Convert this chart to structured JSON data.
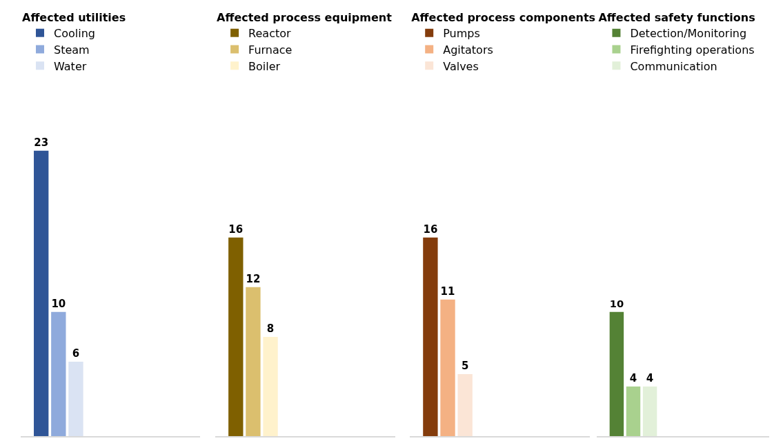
{
  "chart_data": [
    {
      "type": "bar",
      "legend_title": "Affected utilities",
      "categories": [
        null
      ],
      "data_labels": true,
      "legend": "top",
      "series": [
        {
          "name": "Cooling",
          "color": "#2f5597",
          "values": [
            23
          ]
        },
        {
          "name": "Steam",
          "color": "#8faadc",
          "values": [
            10
          ]
        },
        {
          "name": "Water",
          "color": "#dae3f3",
          "values": [
            6
          ]
        }
      ]
    },
    {
      "type": "bar",
      "legend_title": "Affected process equipment",
      "categories": [
        null
      ],
      "data_labels": true,
      "legend": "top",
      "series": [
        {
          "name": "Reactor",
          "color": "#7f6000",
          "values": [
            16
          ]
        },
        {
          "name": "Furnace",
          "color": "#dbbf6e",
          "values": [
            12
          ]
        },
        {
          "name": "Boiler",
          "color": "#fff2cc",
          "values": [
            8
          ]
        }
      ]
    },
    {
      "type": "bar",
      "legend_title": "Affected process components",
      "categories": [
        null
      ],
      "data_labels": true,
      "legend": "top",
      "series": [
        {
          "name": "Pumps",
          "color": "#843c0c",
          "values": [
            16
          ]
        },
        {
          "name": "Agitators",
          "color": "#f4b183",
          "values": [
            11
          ]
        },
        {
          "name": "Valves",
          "color": "#fbe5d6",
          "values": [
            5
          ]
        }
      ]
    },
    {
      "type": "bar",
      "legend_title": "Affected safety functions",
      "categories": [
        null
      ],
      "data_labels": true,
      "legend": "top",
      "series": [
        {
          "name": "Detection/Monitoring",
          "color": "#548235",
          "values": [
            10
          ]
        },
        {
          "name": "Firefighting operations",
          "color": "#a9d18e",
          "values": [
            4
          ]
        },
        {
          "name": "Communication",
          "color": "#e2f0d9",
          "values": [
            4
          ]
        }
      ]
    }
  ]
}
